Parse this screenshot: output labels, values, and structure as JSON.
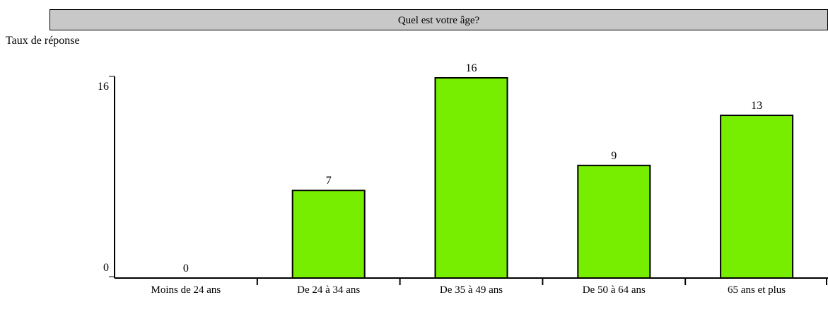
{
  "chart_data": {
    "type": "bar",
    "title": "Quel est votre âge?",
    "y_label": "Taux de réponse",
    "categories": [
      "Moins de 24 ans",
      "De 24 à 34 ans",
      "De 35 à 49 ans",
      "De 50 à 64 ans",
      "65 ans et plus"
    ],
    "values": [
      0,
      7,
      16,
      9,
      13
    ],
    "color": "#77ee00",
    "ylim": [
      0,
      16
    ],
    "yticks": [
      0,
      16
    ],
    "grid": false
  }
}
